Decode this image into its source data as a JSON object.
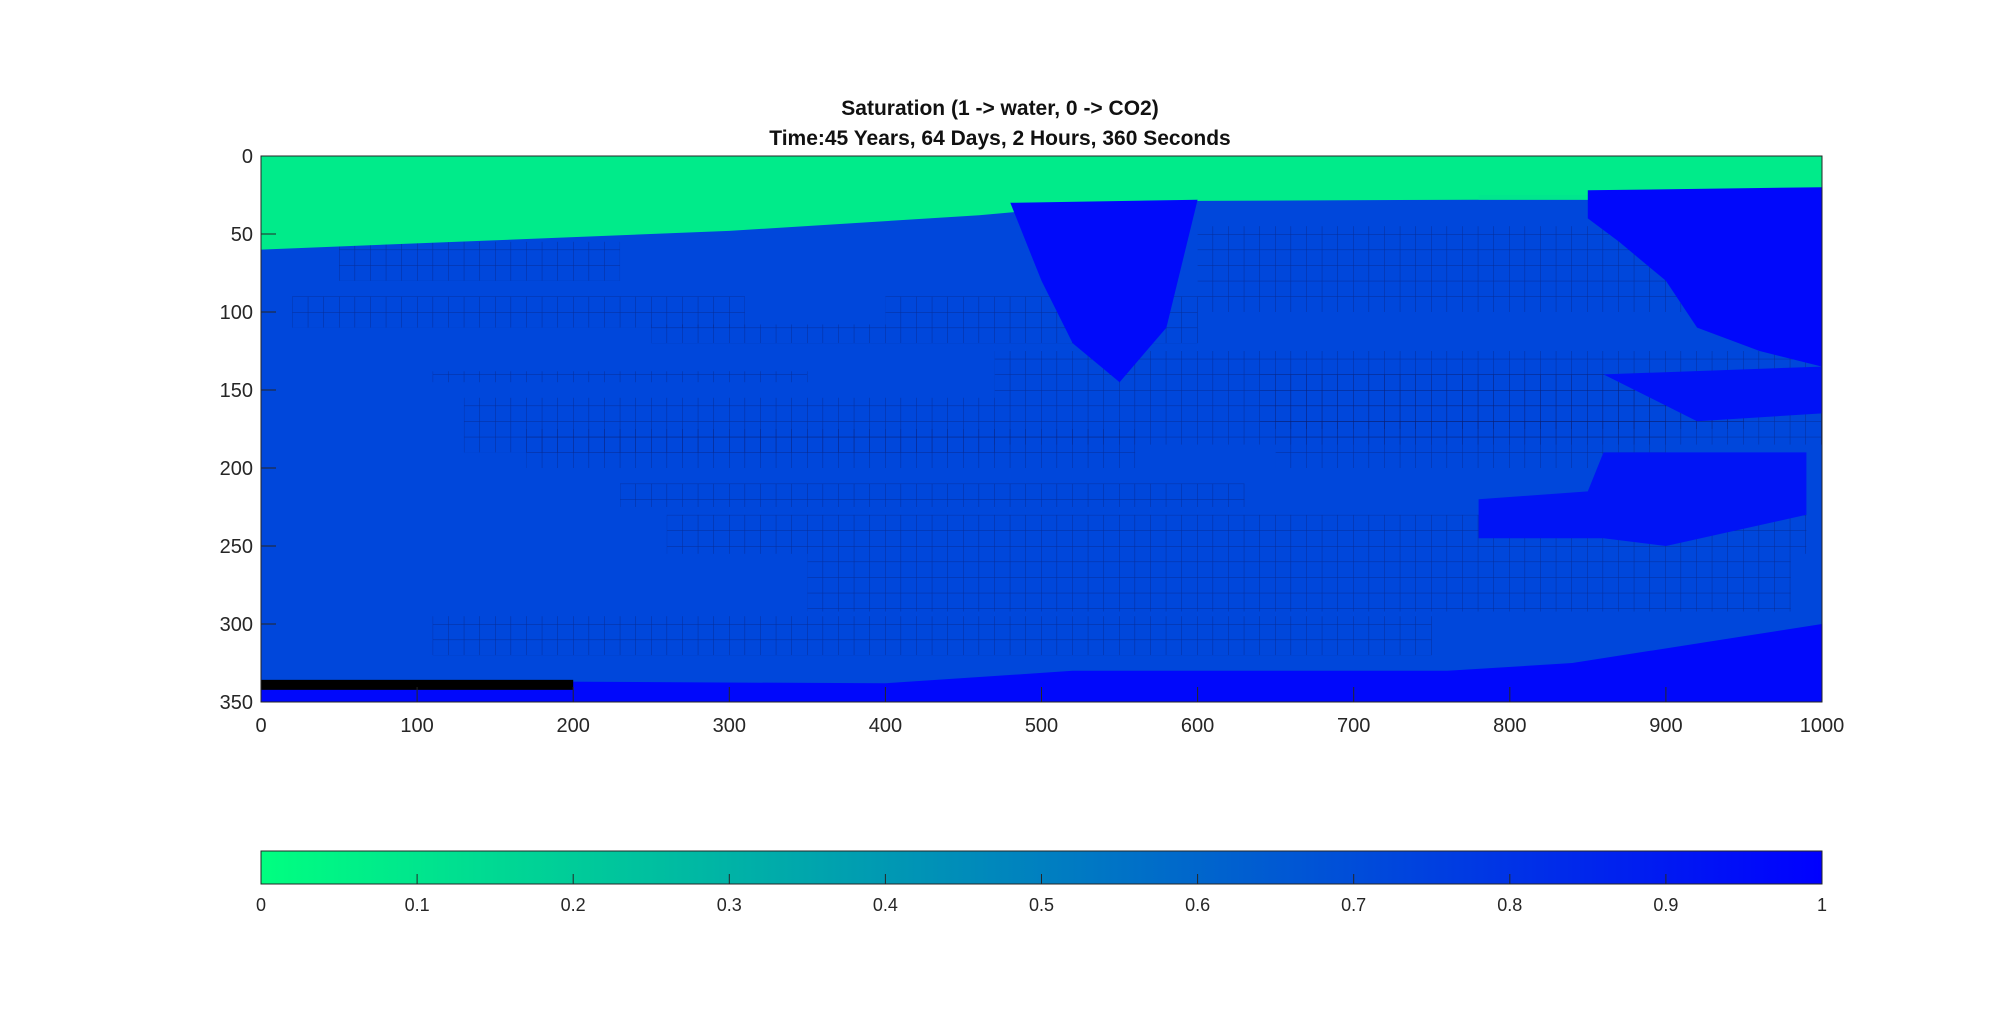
{
  "chart_data": {
    "type": "heatmap",
    "title": "Saturation (1 -> water, 0 -> CO2)",
    "subtitle": "Time:45 Years, 64 Days, 2 Hours, 360 Seconds",
    "xlim": [
      0,
      1000
    ],
    "ylim": [
      0,
      350
    ],
    "y_reversed": true,
    "x_ticks": [
      0,
      100,
      200,
      300,
      400,
      500,
      600,
      700,
      800,
      900,
      1000
    ],
    "y_ticks": [
      0,
      50,
      100,
      150,
      200,
      250,
      300,
      350
    ],
    "colorbar": {
      "orientation": "horizontal",
      "limits": [
        0,
        1
      ],
      "ticks": [
        0,
        0.1,
        0.2,
        0.3,
        0.4,
        0.5,
        0.6,
        0.7,
        0.8,
        0.9,
        1
      ],
      "tick_labels": [
        "0",
        "0.1",
        "0.2",
        "0.3",
        "0.4",
        "0.5",
        "0.6",
        "0.7",
        "0.8",
        "0.9",
        "1"
      ],
      "colormap": "winter",
      "low_color": "#00ff80",
      "high_color": "#0000ff"
    },
    "background_saturation": 0.72,
    "regions": [
      {
        "name": "co2 cap",
        "value": 0.08,
        "polygon": [
          [
            0,
            0
          ],
          [
            1000,
            0
          ],
          [
            1000,
            28
          ],
          [
            780,
            28
          ],
          [
            560,
            29
          ],
          [
            460,
            38
          ],
          [
            300,
            48
          ],
          [
            0,
            60
          ]
        ]
      },
      {
        "name": "co2 cap right edge",
        "value": 0.1,
        "polygon": [
          [
            780,
            25
          ],
          [
            1000,
            25
          ],
          [
            1000,
            28
          ],
          [
            780,
            28
          ]
        ]
      },
      {
        "name": "central plume",
        "value": 0.96,
        "polygon": [
          [
            480,
            30
          ],
          [
            600,
            28
          ],
          [
            580,
            110
          ],
          [
            550,
            145
          ],
          [
            520,
            120
          ],
          [
            500,
            80
          ]
        ]
      },
      {
        "name": "right upper wet zone",
        "value": 0.97,
        "polygon": [
          [
            850,
            22
          ],
          [
            1000,
            20
          ],
          [
            1000,
            135
          ],
          [
            960,
            125
          ],
          [
            920,
            110
          ],
          [
            900,
            80
          ],
          [
            870,
            55
          ],
          [
            850,
            40
          ]
        ]
      },
      {
        "name": "right middle wet zone",
        "value": 0.93,
        "polygon": [
          [
            860,
            140
          ],
          [
            1000,
            135
          ],
          [
            1000,
            165
          ],
          [
            920,
            170
          ],
          [
            880,
            150
          ]
        ]
      },
      {
        "name": "right lower wet zone",
        "value": 0.92,
        "polygon": [
          [
            860,
            190
          ],
          [
            990,
            190
          ],
          [
            990,
            230
          ],
          [
            900,
            250
          ],
          [
            860,
            245
          ],
          [
            780,
            245
          ],
          [
            780,
            220
          ],
          [
            850,
            215
          ]
        ]
      },
      {
        "name": "bottom water band",
        "value": 0.97,
        "polygon": [
          [
            0,
            336
          ],
          [
            400,
            338
          ],
          [
            520,
            330
          ],
          [
            760,
            330
          ],
          [
            840,
            325
          ],
          [
            1000,
            300
          ],
          [
            1000,
            350
          ],
          [
            0,
            350
          ]
        ]
      }
    ],
    "mesh_bands": [
      {
        "x": [
          50,
          230
        ],
        "y": [
          55,
          80
        ]
      },
      {
        "x": [
          20,
          310
        ],
        "y": [
          90,
          110
        ]
      },
      {
        "x": [
          250,
          400
        ],
        "y": [
          108,
          120
        ]
      },
      {
        "x": [
          110,
          350
        ],
        "y": [
          138,
          145
        ]
      },
      {
        "x": [
          130,
          470
        ],
        "y": [
          155,
          190
        ]
      },
      {
        "x": [
          170,
          560
        ],
        "y": [
          175,
          200
        ]
      },
      {
        "x": [
          230,
          630
        ],
        "y": [
          210,
          225
        ]
      },
      {
        "x": [
          260,
          990
        ],
        "y": [
          230,
          255
        ]
      },
      {
        "x": [
          350,
          980
        ],
        "y": [
          255,
          292
        ]
      },
      {
        "x": [
          470,
          1000
        ],
        "y": [
          125,
          185
        ]
      },
      {
        "x": [
          600,
          990
        ],
        "y": [
          45,
          100
        ]
      },
      {
        "x": [
          640,
          950
        ],
        "y": [
          140,
          175
        ]
      },
      {
        "x": [
          110,
          750
        ],
        "y": [
          295,
          320
        ]
      },
      {
        "x": [
          400,
          600
        ],
        "y": [
          90,
          120
        ]
      },
      {
        "x": [
          650,
          900
        ],
        "y": [
          170,
          200
        ]
      }
    ],
    "well_marker": {
      "x": [
        0,
        200
      ],
      "y": 339,
      "color": "#000000"
    }
  }
}
